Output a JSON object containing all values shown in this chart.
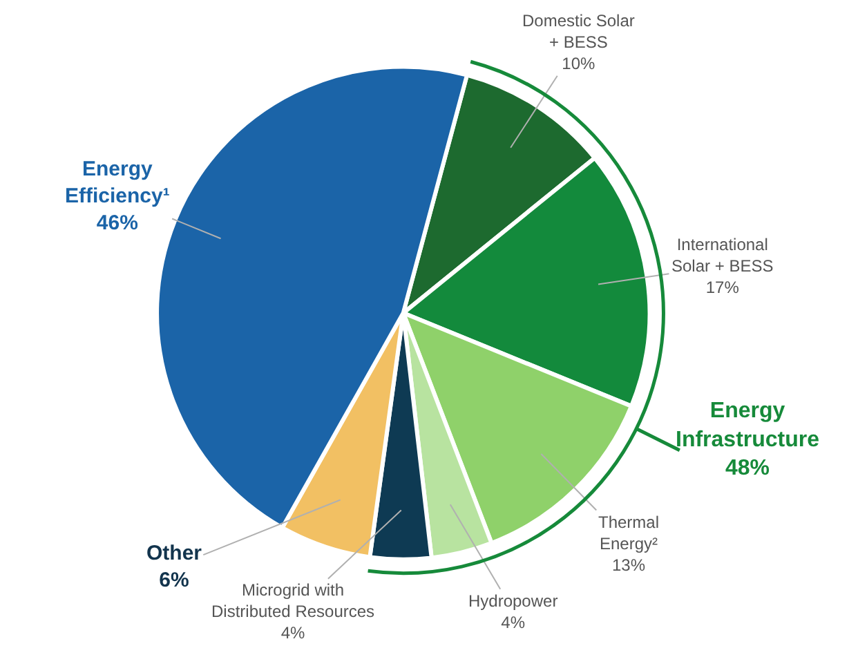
{
  "chart_data": {
    "type": "pie",
    "categories": [
      "Domestic Solar + BESS",
      "International Solar + BESS",
      "Thermal Energy²",
      "Hydropower",
      "Microgrid with Distributed Resources",
      "Other",
      "Energy Efficiency¹"
    ],
    "values": [
      10,
      17,
      13,
      4,
      4,
      6,
      46
    ],
    "colors": [
      "#1d6a2f",
      "#138a3c",
      "#8fd16a",
      "#b8e3a0",
      "#0e3a53",
      "#f2c063",
      "#1b64a8"
    ],
    "value_labels": [
      "10%",
      "17%",
      "13%",
      "4%",
      "4%",
      "6%",
      "46%"
    ],
    "annotations": [
      "Energy Infrastructure 48%"
    ],
    "legend": false
  }
}
